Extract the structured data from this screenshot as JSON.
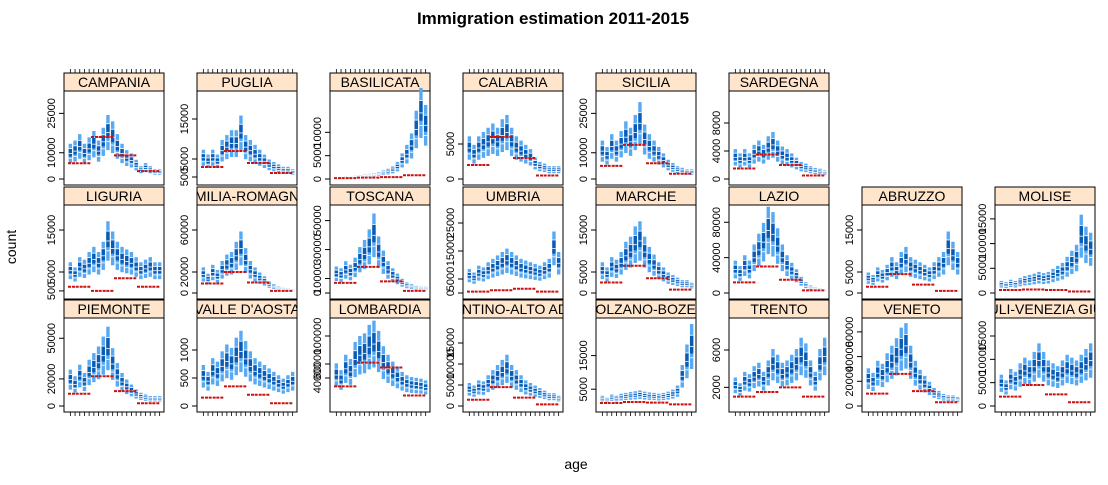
{
  "chart_data": {
    "type": "bar",
    "title": "Immigration estimation 2011-2015",
    "xlabel": "age",
    "ylabel": "count",
    "layout": "lattice 8 columns x 3 rows",
    "colors": {
      "strip_fill": "#ffe5cc",
      "band_light": "#56a9f2",
      "band_dark": "#0a5bb5",
      "estimate": "#cc1111",
      "frame": "#000000"
    },
    "panels": [
      {
        "name": "CAMPANIA",
        "yticks": [
          0,
          10000,
          25000
        ],
        "ymax": 32000,
        "values": [
          11000,
          12000,
          14000,
          11000,
          13000,
          15000,
          12000,
          16000,
          20000,
          18000,
          14000,
          11000,
          9000,
          8000,
          6000,
          4000,
          5000,
          4000,
          3000,
          3000
        ],
        "estimate": [
          6000,
          6000,
          6000,
          16000,
          16000,
          16000,
          9000,
          9000,
          9000,
          3000,
          3000,
          3000
        ]
      },
      {
        "name": "PUGLIA",
        "yticks": [
          500,
          5000,
          15000
        ],
        "ymax": 21000,
        "values": [
          6000,
          5000,
          6000,
          5000,
          8000,
          9000,
          10000,
          10000,
          13000,
          9000,
          8000,
          7000,
          6000,
          5000,
          4000,
          3500,
          3000,
          2500,
          2500,
          2000
        ],
        "estimate": [
          3000,
          3000,
          3000,
          7000,
          7000,
          7000,
          4000,
          4000,
          4000,
          1500,
          1500,
          1500
        ]
      },
      {
        "name": "BASILICATA",
        "yticks": [
          0,
          5000,
          10000
        ],
        "ymax": 18000,
        "values": [
          400,
          300,
          500,
          400,
          600,
          700,
          800,
          900,
          1000,
          1200,
          1500,
          1800,
          2200,
          3000,
          4500,
          6000,
          8000,
          12000,
          16000,
          13000
        ],
        "estimate": [
          200,
          200,
          200,
          300,
          300,
          300,
          400,
          400,
          400,
          800,
          800,
          800
        ]
      },
      {
        "name": "CALABRIA",
        "yticks": [
          0,
          5000
        ],
        "ymax": 12000,
        "values": [
          5000,
          4000,
          5000,
          5500,
          6000,
          6500,
          6000,
          7000,
          7500,
          6000,
          5000,
          4500,
          4000,
          3500,
          2500,
          2000,
          1800,
          1500,
          1500,
          1500
        ],
        "estimate": [
          2000,
          2000,
          2000,
          6000,
          6000,
          6000,
          3000,
          3000,
          3000,
          500,
          500,
          500
        ]
      },
      {
        "name": "SICILIA",
        "yticks": [
          0,
          10000,
          25000
        ],
        "ymax": 32000,
        "values": [
          12000,
          10000,
          14000,
          12000,
          15000,
          18000,
          16000,
          20000,
          24000,
          17000,
          14000,
          12000,
          10000,
          8000,
          6000,
          5000,
          4000,
          3500,
          3000,
          3000
        ],
        "estimate": [
          5000,
          5000,
          5000,
          13000,
          13000,
          13000,
          6000,
          6000,
          6000,
          2000,
          2000,
          2000
        ]
      },
      {
        "name": "SARDEGNA",
        "yticks": [
          0,
          4000,
          8000
        ],
        "ymax": 12000,
        "values": [
          3500,
          3000,
          3500,
          3000,
          4000,
          4500,
          4000,
          5000,
          5500,
          4500,
          3800,
          3500,
          3000,
          2500,
          2000,
          1800,
          1500,
          1300,
          1200,
          1000
        ],
        "estimate": [
          1500,
          1500,
          1500,
          3500,
          3500,
          3500,
          2000,
          2000,
          2000,
          500,
          500,
          500
        ]
      },
      {
        "name": "LIGURIA",
        "yticks": [
          500,
          5000,
          15000
        ],
        "ymax": 20000,
        "values": [
          6000,
          5000,
          7000,
          6500,
          8000,
          9000,
          8000,
          10000,
          14000,
          12000,
          10000,
          9000,
          8500,
          8000,
          7000,
          6000,
          6500,
          7000,
          6000,
          6000
        ],
        "estimate": [
          1500,
          1500,
          1500,
          500,
          500,
          500,
          3500,
          3500,
          3500,
          1500,
          1500,
          1500
        ]
      },
      {
        "name": "EMILIA-ROMAGNA",
        "yticks": [
          0,
          20000,
          60000
        ],
        "ymax": 80000,
        "values": [
          20000,
          15000,
          22000,
          18000,
          25000,
          30000,
          32000,
          40000,
          48000,
          35000,
          25000,
          20000,
          16000,
          13000,
          9000,
          7000,
          5000,
          4000,
          3500,
          3000
        ],
        "estimate": [
          9000,
          9000,
          9000,
          20000,
          20000,
          20000,
          10000,
          10000,
          10000,
          2000,
          2000,
          2000
        ]
      },
      {
        "name": "TOSCANA",
        "yticks": [
          0,
          10000,
          30000,
          50000
        ],
        "ymax": 58000,
        "values": [
          15000,
          14000,
          18000,
          16000,
          20000,
          26000,
          30000,
          36000,
          45000,
          32000,
          24000,
          18000,
          14000,
          11000,
          8000,
          6000,
          5000,
          4000,
          3500,
          3500
        ],
        "estimate": [
          7000,
          7000,
          7000,
          18000,
          18000,
          18000,
          8000,
          8000,
          8000,
          1500,
          1500,
          1500
        ]
      },
      {
        "name": "UMBRIA",
        "yticks": [
          0,
          5000,
          15000,
          25000
        ],
        "ymax": 30000,
        "values": [
          7000,
          6000,
          8000,
          7500,
          9000,
          10000,
          11000,
          12000,
          13000,
          12000,
          11000,
          10000,
          9500,
          9000,
          8500,
          8000,
          9000,
          10000,
          18000,
          12000
        ],
        "estimate": [
          500,
          500,
          500,
          1000,
          1000,
          1000,
          1500,
          1500,
          1500,
          500,
          500,
          500
        ]
      },
      {
        "name": "MARCHE",
        "yticks": [
          0,
          5000,
          15000
        ],
        "ymax": 20000,
        "values": [
          6000,
          5000,
          7000,
          6500,
          8000,
          10000,
          11000,
          13000,
          14000,
          11000,
          9000,
          7500,
          6000,
          5000,
          4000,
          3500,
          3000,
          2500,
          2500,
          2000
        ],
        "estimate": [
          2500,
          2500,
          2500,
          6500,
          6500,
          6500,
          3500,
          3500,
          3500,
          800,
          800,
          800
        ]
      },
      {
        "name": "LAZIO",
        "yticks": [
          0,
          40000,
          80000
        ],
        "ymax": 95000,
        "values": [
          30000,
          25000,
          35000,
          30000,
          45000,
          55000,
          65000,
          80000,
          75000,
          60000,
          45000,
          35000,
          28000,
          22000,
          15000,
          10000,
          7000,
          5000,
          4000,
          3000
        ],
        "estimate": [
          12000,
          12000,
          12000,
          30000,
          30000,
          30000,
          15000,
          15000,
          15000,
          3000,
          3000,
          3000
        ]
      },
      {
        "name": "ABRUZZO",
        "yticks": [
          0,
          5000,
          15000
        ],
        "ymax": 20000,
        "values": [
          4000,
          3500,
          5000,
          4500,
          5500,
          7000,
          6000,
          8000,
          9000,
          7000,
          6500,
          6000,
          5500,
          5000,
          6000,
          7000,
          8000,
          12000,
          10000,
          8000
        ],
        "estimate": [
          1500,
          1500,
          1500,
          4500,
          4500,
          4500,
          2000,
          2000,
          2000,
          500,
          500,
          500
        ]
      },
      {
        "name": "MOLISE",
        "yticks": [
          0,
          5000,
          10000,
          15000
        ],
        "ymax": 17000,
        "values": [
          2000,
          1800,
          2200,
          2000,
          2500,
          2800,
          3000,
          3200,
          3500,
          3300,
          3500,
          4000,
          4500,
          5000,
          6000,
          7000,
          8000,
          13000,
          11000,
          10000
        ],
        "estimate": [
          600,
          600,
          600,
          700,
          700,
          700,
          600,
          600,
          600,
          300,
          300,
          300
        ]
      },
      {
        "name": "PIEMONTE",
        "yticks": [
          0,
          20000,
          50000
        ],
        "ymax": 62000,
        "values": [
          22000,
          18000,
          25000,
          20000,
          28000,
          32000,
          36000,
          42000,
          48000,
          35000,
          26000,
          20000,
          16000,
          13000,
          10000,
          8000,
          7000,
          6000,
          6000,
          6000
        ],
        "estimate": [
          9000,
          9000,
          9000,
          22000,
          22000,
          22000,
          11000,
          11000,
          11000,
          2000,
          2000,
          2000
        ]
      },
      {
        "name": "VALLE D'AOSTA",
        "yticks": [
          0,
          500,
          1000
        ],
        "ymax": 1500,
        "values": [
          600,
          500,
          700,
          650,
          800,
          900,
          850,
          1000,
          1100,
          950,
          800,
          700,
          650,
          600,
          550,
          500,
          450,
          400,
          450,
          500
        ],
        "estimate": [
          150,
          150,
          150,
          350,
          350,
          350,
          200,
          200,
          200,
          50,
          50,
          50
        ]
      },
      {
        "name": "LOMBARDIA",
        "yticks": [
          40000,
          60000,
          100000
        ],
        "ymax": 120000,
        "values": [
          50000,
          42000,
          60000,
          55000,
          75000,
          82000,
          85000,
          95000,
          100000,
          88000,
          70000,
          60000,
          52000,
          46000,
          40000,
          36000,
          34000,
          33000,
          32000,
          30000
        ],
        "estimate": [
          28000,
          28000,
          28000,
          62000,
          62000,
          62000,
          55000,
          55000,
          55000,
          15000,
          15000,
          15000
        ]
      },
      {
        "name": "TRENTINO-ALTO ADIGE",
        "yticks": [
          0,
          5000,
          10000,
          15000
        ],
        "ymax": 20000,
        "values": [
          4500,
          4000,
          5000,
          4800,
          6000,
          7000,
          8000,
          9000,
          10000,
          8000,
          7000,
          6000,
          5000,
          4500,
          4000,
          3500,
          3000,
          2500,
          2500,
          2000
        ],
        "estimate": [
          1500,
          1500,
          1500,
          4500,
          4500,
          4500,
          2000,
          2000,
          2000,
          400,
          400,
          400
        ]
      },
      {
        "name": "BOLZANO-BOZEN",
        "yticks": [
          5000,
          15000
        ],
        "ymax": 25000,
        "values": [
          2500,
          2000,
          2800,
          2500,
          3000,
          3200,
          3400,
          3600,
          3800,
          3500,
          3300,
          3200,
          3000,
          3200,
          3500,
          4000,
          5000,
          10000,
          15000,
          20000
        ],
        "estimate": [
          900,
          900,
          900,
          1200,
          1200,
          1200,
          1000,
          1000,
          1000,
          500,
          500,
          500
        ]
      },
      {
        "name": "TRENTO",
        "yticks": [
          2000,
          6000
        ],
        "ymax": 9000,
        "values": [
          2500,
          2000,
          3000,
          2800,
          3500,
          3800,
          3000,
          4000,
          5000,
          4500,
          3800,
          4000,
          4500,
          5000,
          6000,
          5500,
          4000,
          3000,
          5000,
          6000
        ],
        "estimate": [
          1000,
          1000,
          1000,
          1500,
          1500,
          1500,
          2000,
          2000,
          2000,
          1000,
          1000,
          1000
        ]
      },
      {
        "name": "VENETO",
        "yticks": [
          0,
          20000,
          40000,
          60000
        ],
        "ymax": 68000,
        "values": [
          25000,
          22000,
          30000,
          28000,
          35000,
          40000,
          45000,
          52000,
          55000,
          40000,
          30000,
          24000,
          20000,
          16000,
          12000,
          10000,
          8000,
          7000,
          7000,
          6000
        ],
        "estimate": [
          10000,
          10000,
          10000,
          26000,
          26000,
          26000,
          12000,
          12000,
          12000,
          3000,
          3000,
          3000
        ]
      },
      {
        "name": "FRIULI-VENEZIA GIULIA",
        "yticks": [
          0,
          5000,
          10000,
          15000
        ],
        "ymax": 18000,
        "values": [
          5500,
          4500,
          6500,
          6000,
          7500,
          8500,
          8000,
          9500,
          11000,
          9500,
          8000,
          7500,
          7000,
          8000,
          9000,
          8500,
          8000,
          9000,
          10000,
          11000
        ],
        "estimate": [
          2000,
          2000,
          2000,
          4500,
          4500,
          4500,
          2500,
          2500,
          2500,
          800,
          800,
          800
        ]
      }
    ]
  }
}
